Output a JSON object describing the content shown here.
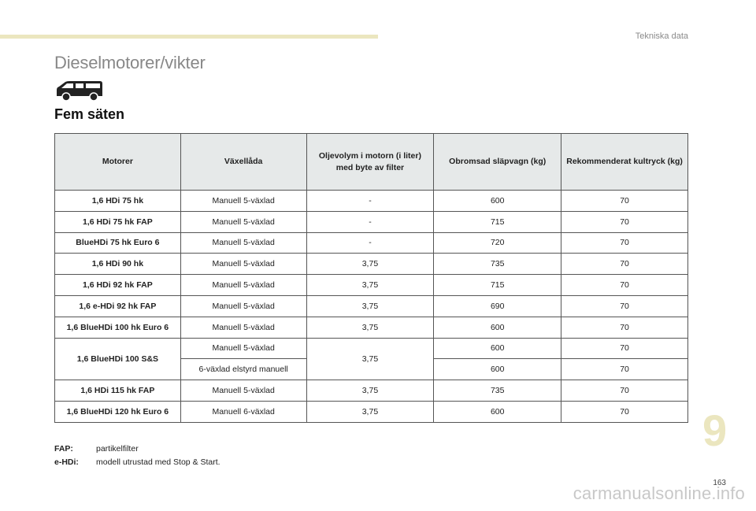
{
  "header": {
    "chapter_title": "Tekniska data"
  },
  "page_heading": "Dieselmotorer/vikter",
  "section_title": "Fem säten",
  "table": {
    "headers": [
      "Motorer",
      "Växellåda",
      "Oljevolym i motorn (i liter) med byte av filter",
      "Obromsad släpvagn (kg)",
      "Rekommenderat kultryck (kg)"
    ],
    "rows": [
      {
        "engine": "1,6 HDi 75 hk",
        "gearbox": "Manuell 5-växlad",
        "oil": "-",
        "trailer": "600",
        "ball": "70"
      },
      {
        "engine": "1,6 HDi 75 hk FAP",
        "gearbox": "Manuell 5-växlad",
        "oil": "-",
        "trailer": "715",
        "ball": "70"
      },
      {
        "engine": "BlueHDi 75 hk Euro 6",
        "gearbox": "Manuell 5-växlad",
        "oil": "-",
        "trailer": "720",
        "ball": "70"
      },
      {
        "engine": "1,6 HDi 90 hk",
        "gearbox": "Manuell 5-växlad",
        "oil": "3,75",
        "trailer": "735",
        "ball": "70"
      },
      {
        "engine": "1,6 HDi 92 hk FAP",
        "gearbox": "Manuell 5-växlad",
        "oil": "3,75",
        "trailer": "715",
        "ball": "70"
      },
      {
        "engine": "1,6 e-HDi 92 hk FAP",
        "gearbox": "Manuell 5-växlad",
        "oil": "3,75",
        "trailer": "690",
        "ball": "70"
      },
      {
        "engine": "1,6 BlueHDi 100 hk Euro 6",
        "gearbox": "Manuell 5-växlad",
        "oil": "3,75",
        "trailer": "600",
        "ball": "70"
      },
      {
        "engine": "1,6 BlueHDi 100 S&S",
        "gearbox": "Manuell 5-växlad",
        "oil": "3,75",
        "trailer": "600",
        "ball": "70",
        "gearbox2": "6-växlad elstyrd manuell",
        "trailer2": "600",
        "ball2": "70"
      },
      {
        "engine": "1,6 HDi 115 hk FAP",
        "gearbox": "Manuell 5-växlad",
        "oil": "3,75",
        "trailer": "735",
        "ball": "70"
      },
      {
        "engine": "1,6 BlueHDi 120 hk Euro 6",
        "gearbox": "Manuell 6-växlad",
        "oil": "3,75",
        "trailer": "600",
        "ball": "70"
      }
    ]
  },
  "notes": [
    {
      "key": "FAP:",
      "text": "partikelfilter"
    },
    {
      "key": "e-HDi:",
      "text": "modell utrustad med Stop & Start."
    }
  ],
  "chapter_number": "9",
  "page_number": "163",
  "watermark": "carmanualsonline.info",
  "colors": {
    "accent": "#ebe6bf",
    "header_fill": "#e6e9e9",
    "heading_gray": "#888888"
  },
  "icons": [
    "van-icon"
  ]
}
